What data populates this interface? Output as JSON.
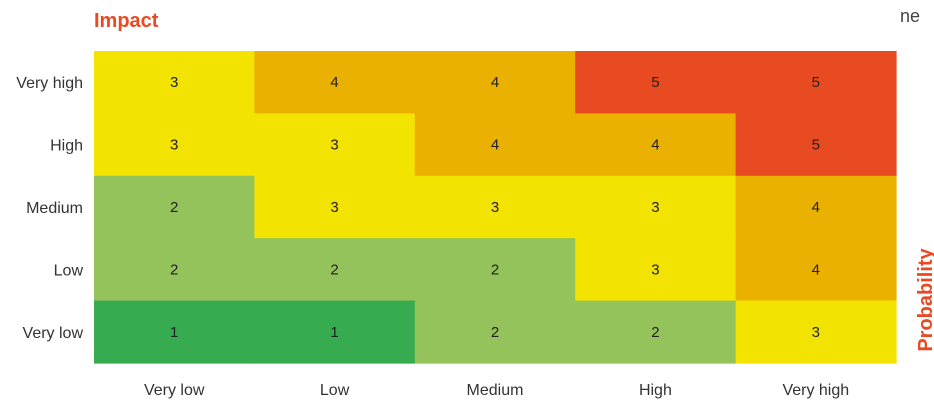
{
  "chart_data": {
    "type": "heatmap",
    "title": "Impact",
    "corner_text": "ne",
    "xlabel": "",
    "ylabel": "Probability",
    "x_categories": [
      "Very low",
      "Low",
      "Medium",
      "High",
      "Very high"
    ],
    "y_categories": [
      "Very high",
      "High",
      "Medium",
      "Low",
      "Very low"
    ],
    "values": [
      [
        3,
        4,
        4,
        5,
        5
      ],
      [
        3,
        3,
        4,
        4,
        5
      ],
      [
        2,
        3,
        3,
        3,
        4
      ],
      [
        2,
        2,
        2,
        3,
        4
      ],
      [
        1,
        1,
        2,
        2,
        3
      ]
    ],
    "colors": {
      "1": "#36ab50",
      "2": "#94c25b",
      "3": "#f2e300",
      "4": "#ebb100",
      "5": "#e84a22"
    },
    "accent": "#e84b23"
  }
}
